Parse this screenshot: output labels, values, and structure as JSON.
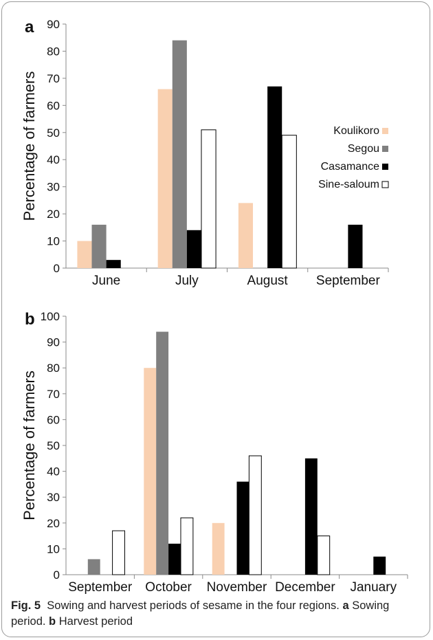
{
  "caption": {
    "fig_label": "Fig. 5",
    "text1": "Sowing and harvest periods of sesame in the four regions.",
    "a_label": "a",
    "text2": "Sowing period.",
    "b_label": "b",
    "text3": "Harvest period"
  },
  "colors": {
    "Koulikoro": "#f9d0b0",
    "Segou": "#808080",
    "Casamance": "#000000",
    "Sine-saloum": "#ffffff"
  },
  "chart_data": [
    {
      "panel_label": "a",
      "type": "bar",
      "title": "",
      "xlabel": "",
      "ylabel": "Percentage of farmers",
      "ylim": [
        0,
        90
      ],
      "yticks": [
        0,
        10,
        20,
        30,
        40,
        50,
        60,
        70,
        80,
        90
      ],
      "categories": [
        "June",
        "July",
        "August",
        "September"
      ],
      "series": [
        {
          "name": "Koulikoro",
          "values": [
            10,
            66,
            24,
            0
          ]
        },
        {
          "name": "Segou",
          "values": [
            16,
            84,
            0,
            0
          ]
        },
        {
          "name": "Casamance",
          "values": [
            3,
            14,
            67,
            16
          ]
        },
        {
          "name": "Sine-saloum",
          "values": [
            0,
            51,
            49,
            0
          ]
        }
      ],
      "legend": "right",
      "grid": false
    },
    {
      "panel_label": "b",
      "type": "bar",
      "title": "",
      "xlabel": "",
      "ylabel": "Percentage of farmers",
      "ylim": [
        0,
        100
      ],
      "yticks": [
        0,
        10,
        20,
        30,
        40,
        50,
        60,
        70,
        80,
        90,
        100
      ],
      "categories": [
        "September",
        "October",
        "November",
        "December",
        "January"
      ],
      "series": [
        {
          "name": "Koulikoro",
          "values": [
            0,
            80,
            20,
            0,
            0
          ]
        },
        {
          "name": "Segou",
          "values": [
            6,
            94,
            0,
            0,
            0
          ]
        },
        {
          "name": "Casamance",
          "values": [
            0,
            12,
            36,
            45,
            7
          ]
        },
        {
          "name": "Sine-saloum",
          "values": [
            17,
            22,
            46,
            15,
            0
          ]
        }
      ],
      "legend": "none",
      "grid": false
    }
  ]
}
